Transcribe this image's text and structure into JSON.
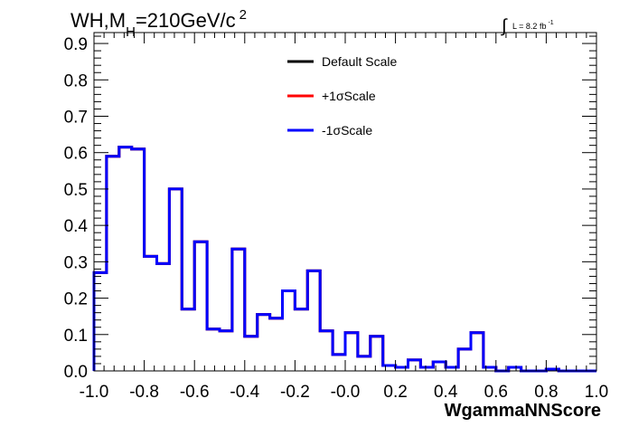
{
  "chart_data": {
    "type": "line",
    "title_parts": [
      "WH,M",
      "H",
      "=210GeV/c",
      "2"
    ],
    "lumi_parts": [
      "∫",
      "L = 8.2 fb",
      "-1"
    ],
    "xlabel": "WgammaNNScore",
    "ylabel": "",
    "xlim": [
      -1.0,
      1.0
    ],
    "ylim": [
      0.0,
      0.93
    ],
    "xticks": [
      -1.0,
      -0.8,
      -0.6,
      -0.4,
      -0.2,
      0.0,
      0.2,
      0.4,
      0.6,
      0.8,
      1.0
    ],
    "xtick_labels": [
      "-1.0",
      "-0.8",
      "-0.6",
      "-0.4",
      "-0.2",
      "-0.0",
      "0.2",
      "0.4",
      "0.6",
      "0.8",
      "1.0"
    ],
    "yticks": [
      0.0,
      0.1,
      0.2,
      0.3,
      0.4,
      0.5,
      0.6,
      0.7,
      0.8,
      0.9
    ],
    "ytick_labels": [
      "0.0",
      "0.1",
      "0.2",
      "0.3",
      "0.4",
      "0.5",
      "0.6",
      "0.7",
      "0.8",
      "0.9"
    ],
    "bin_edges": [
      -1.0,
      -0.95,
      -0.9,
      -0.85,
      -0.8,
      -0.75,
      -0.7,
      -0.65,
      -0.6,
      -0.55,
      -0.5,
      -0.45,
      -0.4,
      -0.35,
      -0.3,
      -0.25,
      -0.2,
      -0.15,
      -0.1,
      -0.05,
      0.0,
      0.05,
      0.1,
      0.15,
      0.2,
      0.25,
      0.3,
      0.35,
      0.4,
      0.45,
      0.5,
      0.55,
      0.6,
      0.65,
      0.7,
      0.75,
      0.8,
      0.85,
      0.9,
      0.95,
      1.0
    ],
    "legend_position": "top-center",
    "series": [
      {
        "name": "Default Scale",
        "color": "#000000",
        "values": [
          0.27,
          0.59,
          0.615,
          0.61,
          0.315,
          0.295,
          0.5,
          0.17,
          0.355,
          0.115,
          0.11,
          0.335,
          0.095,
          0.155,
          0.145,
          0.22,
          0.17,
          0.275,
          0.11,
          0.045,
          0.105,
          0.04,
          0.095,
          0.015,
          0.01,
          0.03,
          0.01,
          0.025,
          0.01,
          0.06,
          0.105,
          0.01,
          0.0,
          0.01,
          0.0,
          0.0,
          0.005,
          0.0,
          0.0,
          0.0
        ]
      },
      {
        "name": "+1σScale",
        "color": "#ff0000",
        "values": [
          0.27,
          0.59,
          0.615,
          0.61,
          0.315,
          0.295,
          0.5,
          0.17,
          0.355,
          0.115,
          0.11,
          0.335,
          0.095,
          0.155,
          0.145,
          0.22,
          0.17,
          0.275,
          0.11,
          0.045,
          0.105,
          0.04,
          0.095,
          0.015,
          0.01,
          0.03,
          0.01,
          0.025,
          0.01,
          0.06,
          0.105,
          0.01,
          0.0,
          0.01,
          0.0,
          0.0,
          0.005,
          0.0,
          0.0,
          0.0
        ]
      },
      {
        "name": "-1σScale",
        "color": "#0000ff",
        "values": [
          0.27,
          0.59,
          0.615,
          0.61,
          0.315,
          0.295,
          0.5,
          0.17,
          0.355,
          0.115,
          0.11,
          0.335,
          0.095,
          0.155,
          0.145,
          0.22,
          0.17,
          0.275,
          0.11,
          0.045,
          0.105,
          0.04,
          0.095,
          0.015,
          0.01,
          0.03,
          0.01,
          0.025,
          0.01,
          0.06,
          0.105,
          0.01,
          0.0,
          0.01,
          0.0,
          0.0,
          0.005,
          0.0,
          0.0,
          0.0
        ]
      }
    ]
  }
}
